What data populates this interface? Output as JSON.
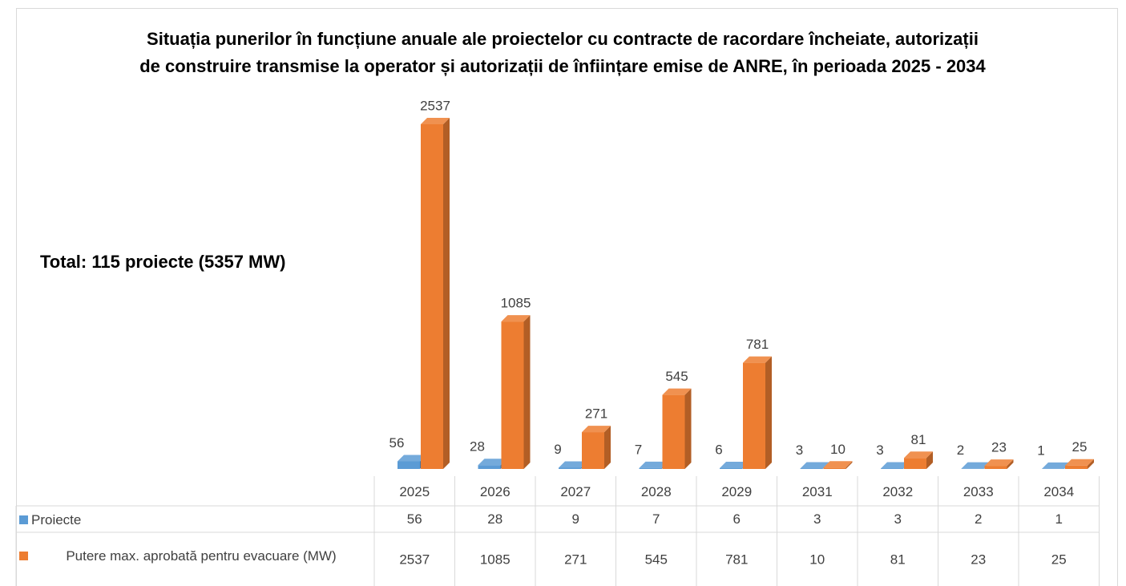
{
  "chart_data": {
    "type": "bar3d",
    "title": [
      "Situația punerilor în funcțiune anuale ale proiectelor cu contracte de racordare încheiate, autorizații",
      "de construire transmise la operator și autorizații de înființare emise de ANRE, în perioada 2025 - 2034"
    ],
    "annotation": "Total: 115 proiecte (5357 MW)",
    "categories": [
      "2025",
      "2026",
      "2027",
      "2028",
      "2029",
      "2031",
      "2032",
      "2033",
      "2034"
    ],
    "series": [
      {
        "name": "Proiecte",
        "color": "#5b9bd5",
        "values": [
          56,
          28,
          9,
          7,
          6,
          3,
          3,
          2,
          1
        ]
      },
      {
        "name": "Putere max. aprobată pentru evacuare (MW)",
        "color": "#ed7d31",
        "values": [
          2537,
          1085,
          271,
          545,
          781,
          10,
          81,
          23,
          25
        ]
      }
    ],
    "data_table": true
  }
}
